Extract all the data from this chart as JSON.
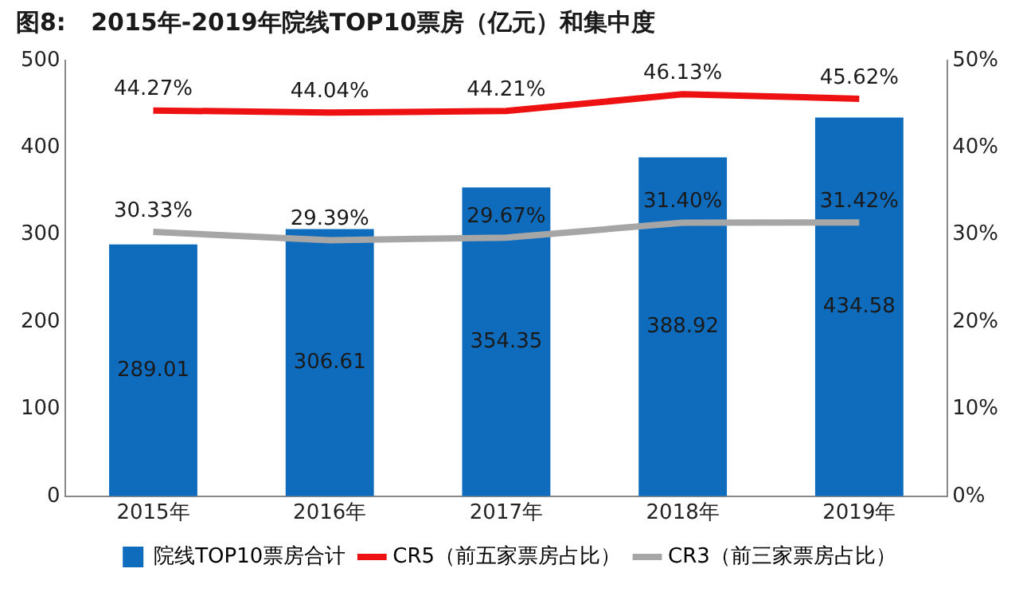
{
  "chart_data": {
    "type": "bar",
    "title": "图8:   2015年-2019年院线TOP10票房（亿元）和集中度",
    "categories": [
      "2015年",
      "2016年",
      "2017年",
      "2018年",
      "2019年"
    ],
    "series": [
      {
        "name": "院线TOP10票房合计",
        "type": "bar",
        "color": "#0f6cbd",
        "values": [
          289.01,
          306.61,
          354.35,
          388.92,
          434.58
        ],
        "value_labels": [
          "289.01",
          "306.61",
          "354.35",
          "388.92",
          "434.58"
        ]
      },
      {
        "name": "CR5（前五家票房占比）",
        "type": "line",
        "axis": "y2",
        "color": "#ee1111",
        "values": [
          44.27,
          44.04,
          44.21,
          46.13,
          45.62
        ],
        "value_labels": [
          "44.27%",
          "44.04%",
          "44.21%",
          "46.13%",
          "45.62%"
        ]
      },
      {
        "name": "CR3（前三家票房占比）",
        "type": "line",
        "axis": "y2",
        "color": "#a6a6a6",
        "values": [
          30.33,
          29.39,
          29.67,
          31.4,
          31.42
        ],
        "value_labels": [
          "30.33%",
          "29.39%",
          "29.67%",
          "31.40%",
          "31.42%"
        ]
      }
    ],
    "ylim": [
      0,
      500
    ],
    "yticks": [
      0,
      100,
      200,
      300,
      400,
      500
    ],
    "y2lim": [
      0,
      50
    ],
    "y2ticks": [
      {
        "value": 0,
        "label": "0%"
      },
      {
        "value": 10,
        "label": "10%"
      },
      {
        "value": 20,
        "label": "20%"
      },
      {
        "value": 30,
        "label": "30%"
      },
      {
        "value": 40,
        "label": "40%"
      },
      {
        "value": 50,
        "label": "50%"
      }
    ],
    "grid": false,
    "legend": "bottom",
    "marker": "none",
    "line_style": "solid"
  }
}
